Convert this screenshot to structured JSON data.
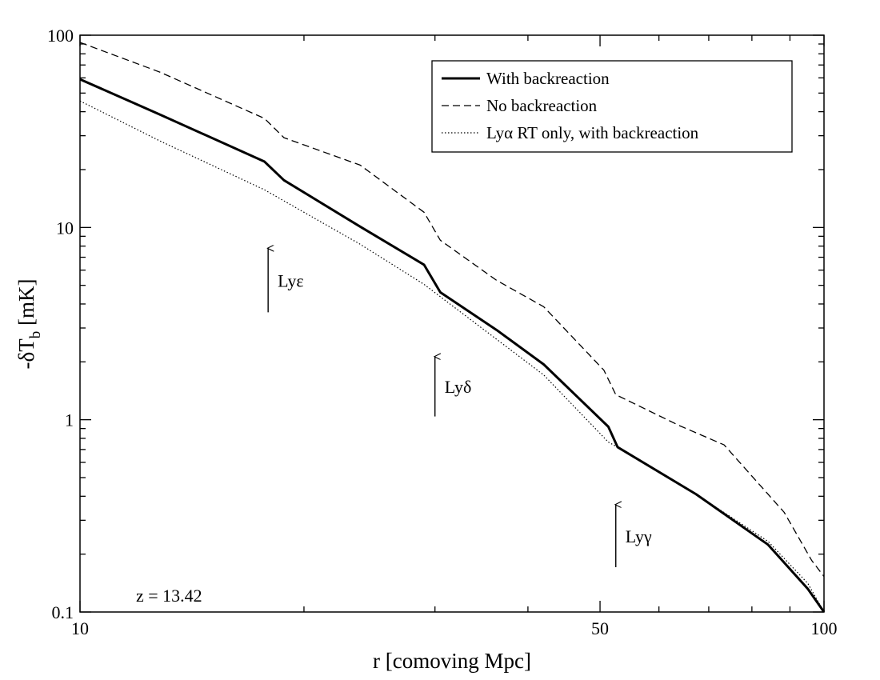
{
  "chart_data": {
    "type": "line",
    "xlabel": "r [comoving Mpc]",
    "ylabel": [
      "-δT",
      "b",
      " [mK]"
    ],
    "xscale": "log",
    "yscale": "log",
    "xlim": [
      10,
      100
    ],
    "ylim": [
      0.1,
      100
    ],
    "xticks": [
      10,
      50,
      100
    ],
    "xminor_ticks": [
      20,
      30,
      40,
      60,
      70,
      80,
      90
    ],
    "yticks": [
      0.1,
      1,
      10,
      100
    ],
    "yminor_ticks": [
      0.2,
      0.3,
      0.4,
      0.5,
      0.6,
      0.7,
      0.8,
      0.9,
      2,
      3,
      4,
      5,
      6,
      7,
      8,
      9,
      20,
      30,
      40,
      50,
      60,
      70,
      80,
      90
    ],
    "legend": "upper right",
    "text": "z = 13.42",
    "series": [
      {
        "name": "With backreaction",
        "color": "#000000",
        "style": "solid",
        "x": [
          10,
          12.8,
          17.7,
          18.8,
          23.8,
          29.0,
          30.5,
          36.3,
          42.0,
          51.3,
          52.8,
          67.3,
          84.1,
          95.1,
          100
        ],
        "values": [
          59,
          38.7,
          22,
          17.6,
          10.1,
          6.4,
          4.6,
          2.93,
          1.94,
          0.92,
          0.72,
          0.41,
          0.224,
          0.132,
          0.1
        ]
      },
      {
        "name": "No backreaction",
        "color": "#000000",
        "style": "dashed",
        "x": [
          10,
          12.8,
          17.7,
          18.8,
          23.8,
          29.0,
          30.5,
          36.3,
          42.0,
          50.6,
          52.5,
          64.0,
          73.4,
          88.4,
          96.3,
          100
        ],
        "values": [
          91.7,
          64.3,
          36.9,
          29.3,
          21.1,
          12.0,
          8.58,
          5.31,
          3.87,
          1.81,
          1.35,
          0.93,
          0.74,
          0.33,
          0.185,
          0.153
        ]
      },
      {
        "name": "Lyα RT only, with backreaction",
        "color": "#000000",
        "style": "dotted",
        "x": [
          10,
          12.8,
          17.7,
          23.8,
          29.0,
          42.0,
          51.3,
          52.8,
          67.3,
          84.1,
          95.1,
          100
        ],
        "values": [
          45.5,
          28.2,
          15.7,
          8.18,
          5.06,
          1.71,
          0.765,
          0.72,
          0.41,
          0.233,
          0.141,
          0.1
        ]
      }
    ],
    "annotations": [
      {
        "text": "Lyε",
        "x": 17.9,
        "y": [
          3.62,
          7.8
        ]
      },
      {
        "text": "Lyδ",
        "x": 30.0,
        "y": [
          1.04,
          2.13
        ]
      },
      {
        "text": "Lyγ",
        "x": 52.5,
        "y": [
          0.171,
          0.362
        ]
      }
    ]
  }
}
